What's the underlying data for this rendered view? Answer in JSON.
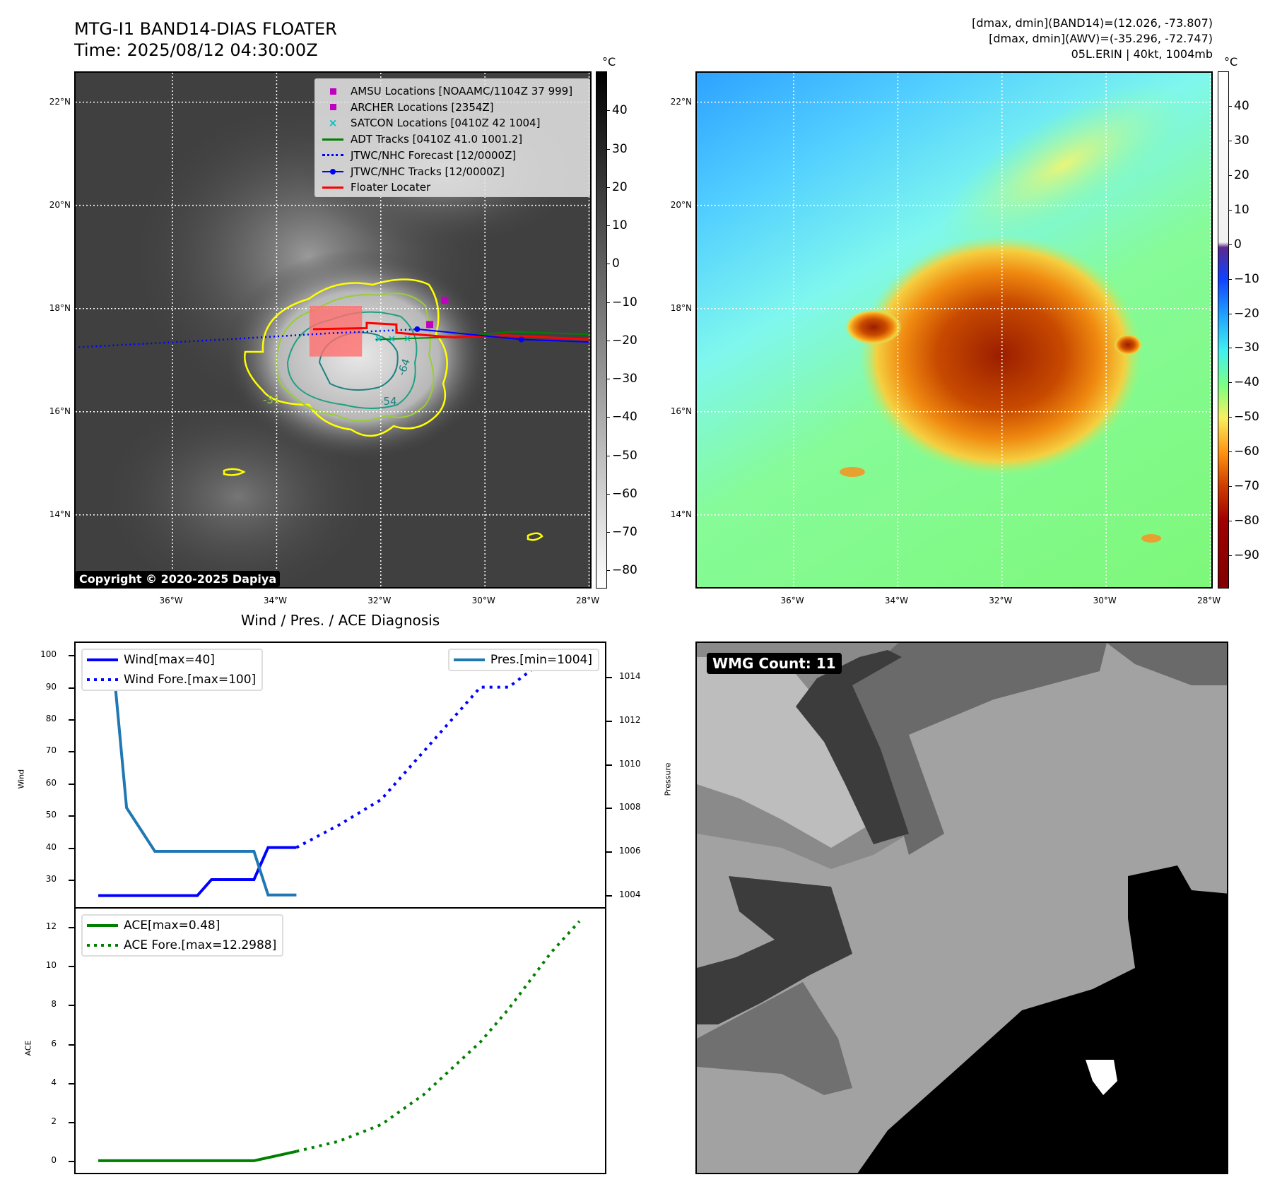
{
  "header": {
    "title_line1": "MTG-I1 BAND14-DIAS FLOATER",
    "title_line2": "Time: 2025/08/12 04:30:00Z",
    "info_line1": "[dmax, dmin](BAND14)=(12.026, -73.807)",
    "info_line2": "[dmax, dmin](AWV)=(-35.296, -72.747)",
    "info_line3": "05L.ERIN | 40kt, 1004mb"
  },
  "map": {
    "lon_range": [
      -37.86,
      -27.98
    ],
    "lat_range": [
      12.6,
      22.57
    ],
    "lat_labels": [
      "22°N",
      "20°N",
      "18°N",
      "16°N",
      "14°N"
    ],
    "lat_values": [
      22,
      20,
      18,
      16,
      14
    ],
    "lon_labels": [
      "36°W",
      "34°W",
      "32°W",
      "30°W",
      "28°W"
    ],
    "lon_values": [
      -36,
      -34,
      -32,
      -30,
      -28
    ],
    "copyright": "Copyright © 2020-2025 Dapiya",
    "contour_labels": [
      "-64",
      "-54",
      "-31"
    ],
    "legend": [
      {
        "label": "AMSU Locations [NOAAMC/1104Z 37 999]",
        "color": "#c000c0",
        "marker": "square"
      },
      {
        "label": "ARCHER Locations [2354Z]",
        "color": "#c000c0",
        "marker": "square"
      },
      {
        "label": "SATCON Locations [0410Z 42 1004]",
        "color": "#00c0c0",
        "marker": "x"
      },
      {
        "label": "ADT Tracks [0410Z 41.0 1001.2]",
        "color": "#008000",
        "marker": "line"
      },
      {
        "label": "JTWC/NHC Forecast [12/0000Z]",
        "color": "#0000ff",
        "marker": "dotted"
      },
      {
        "label": "JTWC/NHC Tracks [12/0000Z]",
        "color": "#0000ff",
        "marker": "line-dot"
      },
      {
        "label": "Floater Locater",
        "color": "#ff0000",
        "marker": "line"
      }
    ],
    "tracks": {
      "forecast": [
        [
          -37.8,
          17.25
        ],
        [
          -35,
          17.4
        ],
        [
          -33,
          17.52
        ],
        [
          -31.26,
          17.6
        ]
      ],
      "jtwc": [
        [
          -31.3,
          17.6
        ],
        [
          -29.3,
          17.4
        ],
        [
          -28.0,
          17.35
        ]
      ],
      "adt": [
        [
          -32.1,
          17.4
        ],
        [
          -30.5,
          17.45
        ],
        [
          -29.5,
          17.55
        ],
        [
          -28.0,
          17.5
        ]
      ],
      "floater": [
        [
          -33.3,
          17.6
        ],
        [
          -32.27,
          17.62
        ],
        [
          -32.27,
          17.72
        ],
        [
          -31.7,
          17.69
        ],
        [
          -31.7,
          17.53
        ],
        [
          -30.6,
          17.44
        ],
        [
          -29.6,
          17.48
        ],
        [
          -28.0,
          17.4
        ]
      ],
      "floater_box": [
        [
          -33.37,
          18.05
        ],
        [
          -32.36,
          17.07
        ]
      ],
      "amsu": [
        [
          -30.77,
          18.16
        ]
      ],
      "archer": [
        [
          -31.06,
          17.69
        ]
      ],
      "satcon": [
        [
          -32.05,
          17.42
        ],
        [
          -31.8,
          17.42
        ],
        [
          -31.5,
          17.43
        ]
      ]
    }
  },
  "colorbar_gray": {
    "unit": "°C",
    "ticks": [
      40,
      30,
      20,
      10,
      0,
      -10,
      -20,
      -30,
      -40,
      -50,
      -60,
      -70,
      -80
    ],
    "labels": [
      "40",
      "30",
      "20",
      "10",
      "0",
      "−10",
      "−20",
      "−30",
      "−40",
      "−50",
      "−60",
      "−70",
      "−80"
    ],
    "range": [
      -84.7,
      50.2
    ]
  },
  "colorbar_color": {
    "unit": "°C",
    "ticks": [
      40,
      30,
      20,
      10,
      0,
      -10,
      -20,
      -30,
      -40,
      -50,
      -60,
      -70,
      -80,
      -90
    ],
    "labels": [
      "40",
      "30",
      "20",
      "10",
      "0",
      "−10",
      "−20",
      "−30",
      "−40",
      "−50",
      "−60",
      "−70",
      "−80",
      "−90"
    ],
    "range": [
      -99.7,
      50.1
    ]
  },
  "chart_data": [
    {
      "type": "line",
      "title": "Wind / Pres. / ACE Diagnosis",
      "ylabel": "Wind",
      "y2label": "Pressure",
      "ylim": [
        21.4,
        103.8
      ],
      "y2lim": [
        1003.44,
        1015.56
      ],
      "xlim": [
        -1.6,
        35.8
      ],
      "yticks": [
        30,
        40,
        50,
        60,
        70,
        80,
        90,
        100
      ],
      "y2ticks": [
        1004,
        1006,
        1008,
        1010,
        1012,
        1014
      ],
      "series": [
        {
          "name": "Wind[max=40]",
          "axis": "left",
          "style": "solid",
          "color": "#0000ff",
          "x": [
            0,
            1,
            2,
            3,
            4,
            5,
            6,
            7,
            8,
            9,
            10,
            11,
            12,
            13,
            14
          ],
          "values": [
            25,
            25,
            25,
            25,
            25,
            25,
            25,
            25,
            30,
            30,
            30,
            30,
            40,
            40,
            40
          ]
        },
        {
          "name": "Wind Fore.[max=100]",
          "axis": "left",
          "style": "dotted",
          "color": "#0000ff",
          "x": [
            14,
            17,
            20,
            23,
            27,
            29,
            32,
            34
          ],
          "values": [
            40,
            47,
            55,
            70,
            90,
            90,
            100,
            100
          ]
        },
        {
          "name": "Pres.[min=1004]",
          "axis": "right",
          "style": "solid",
          "color": "#1f77b4",
          "x": [
            0,
            1,
            2,
            3,
            4,
            5,
            6,
            7,
            8,
            9,
            10,
            11,
            12,
            13,
            14
          ],
          "values": [
            1015,
            1015,
            1008,
            1007,
            1006,
            1006,
            1006,
            1006,
            1006,
            1006,
            1006,
            1006,
            1004,
            1004,
            1004
          ]
        }
      ]
    },
    {
      "type": "line",
      "ylabel": "ACE",
      "ylim": [
        -0.62,
        12.95
      ],
      "xlim": [
        -1.6,
        35.8
      ],
      "yticks": [
        0,
        2,
        4,
        6,
        8,
        10,
        12
      ],
      "series": [
        {
          "name": "ACE[max=0.48]",
          "style": "solid",
          "color": "#008000",
          "x": [
            0,
            11,
            14
          ],
          "values": [
            0,
            0,
            0.48
          ]
        },
        {
          "name": "ACE Fore.[max=12.2988]",
          "style": "dotted",
          "color": "#008000",
          "x": [
            14,
            17,
            20,
            23,
            27,
            29,
            32,
            34
          ],
          "values": [
            0.48,
            1.0,
            1.86,
            3.4,
            6.1,
            7.8,
            10.7,
            12.3
          ]
        }
      ]
    }
  ],
  "wmg": {
    "label": "WMG Count: 11"
  }
}
